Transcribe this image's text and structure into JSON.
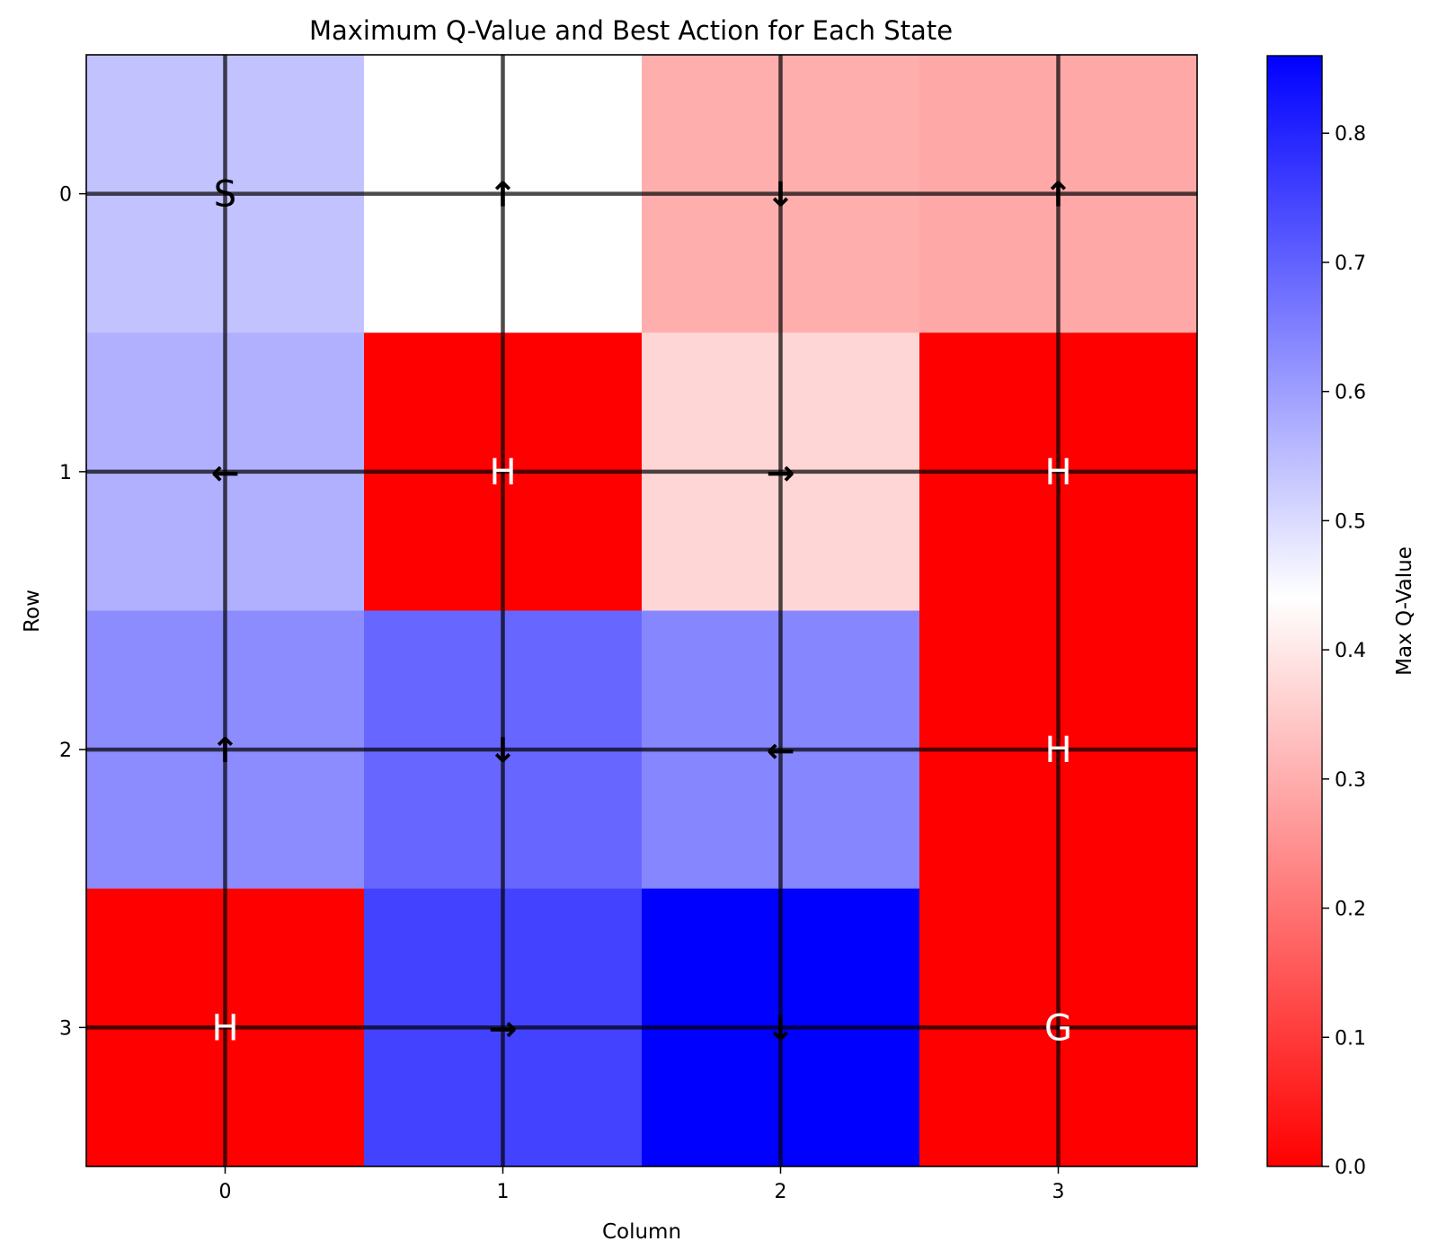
{
  "chart_data": {
    "type": "heatmap",
    "title": "Maximum Q-Value and Best Action for Each State",
    "xlabel": "Column",
    "ylabel": "Row",
    "x_ticks": [
      "0",
      "1",
      "2",
      "3"
    ],
    "y_ticks": [
      "0",
      "1",
      "2",
      "3"
    ],
    "values": [
      [
        0.54,
        0.44,
        0.3,
        0.29
      ],
      [
        0.57,
        0.0,
        0.37,
        0.0
      ],
      [
        0.63,
        0.69,
        0.64,
        0.0
      ],
      [
        0.0,
        0.75,
        0.86,
        0.0
      ]
    ],
    "cell_text": [
      [
        "S",
        "↑",
        "↓",
        "↑"
      ],
      [
        "←",
        "H",
        "→",
        "H"
      ],
      [
        "↑",
        "↓",
        "←",
        "H"
      ],
      [
        "H",
        "→",
        "↓",
        "G"
      ]
    ],
    "cell_text_colors": [
      [
        "#000000",
        "#000000",
        "#000000",
        "#000000"
      ],
      [
        "#000000",
        "#ffffff",
        "#000000",
        "#ffffff"
      ],
      [
        "#000000",
        "#000000",
        "#000000",
        "#ffffff"
      ],
      [
        "#ffffff",
        "#000000",
        "#000000",
        "#ffffff"
      ]
    ],
    "grid": true,
    "colorbar": {
      "label": "Max Q-Value",
      "range": [
        0,
        0.86
      ],
      "ticks": [
        "0.0",
        "0.1",
        "0.2",
        "0.3",
        "0.4",
        "0.5",
        "0.6",
        "0.7",
        "0.8"
      ],
      "colormap": [
        "#ff0000",
        "#ffffff",
        "#0000ff"
      ]
    }
  }
}
